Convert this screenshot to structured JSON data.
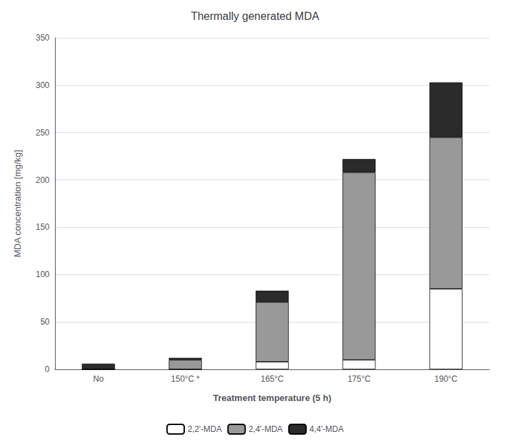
{
  "chart_data": {
    "type": "bar",
    "title": "Thermally generated MDA",
    "categories": [
      "No",
      "150°C *",
      "165°C",
      "175°C",
      "190°C"
    ],
    "series": [
      {
        "name": "2,2'-MDA",
        "color": "#ffffff",
        "values": [
          0,
          0,
          8,
          10,
          85
        ]
      },
      {
        "name": "2,4'-MDA",
        "color": "#999999",
        "values": [
          0,
          10,
          63,
          198,
          160
        ]
      },
      {
        "name": "4,4'-MDA",
        "color": "#2b2b2b",
        "values": [
          6,
          2,
          12,
          14,
          58
        ]
      }
    ],
    "stacked": true,
    "xlabel": "Treatment temperature (5 h)",
    "ylabel": "MDA concentration [mg/kg]",
    "ylim": [
      0,
      350
    ],
    "yticks": [
      0,
      50,
      100,
      150,
      200,
      250,
      300,
      350
    ],
    "grid": true,
    "legend": "bottom"
  }
}
